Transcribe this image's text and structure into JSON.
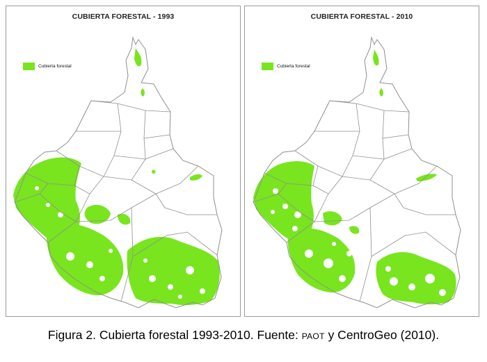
{
  "colors": {
    "forest": "#78e51e",
    "boundary": "#8f8f8f",
    "panel_border": "#9a9a9a"
  },
  "maps": [
    {
      "title": "CUBIERTA FORESTAL - 1993",
      "legend_label": "Cubierta forestal",
      "year": 1993
    },
    {
      "title": "CUBIERTA FORESTAL - 2010",
      "legend_label": "Cubierta forestal",
      "year": 2010
    }
  ],
  "caption": {
    "before": "Figura 2. Cubierta forestal 1993-2010. Fuente: ",
    "source": "PAOT",
    "after": " y CentroGeo (2010)."
  }
}
